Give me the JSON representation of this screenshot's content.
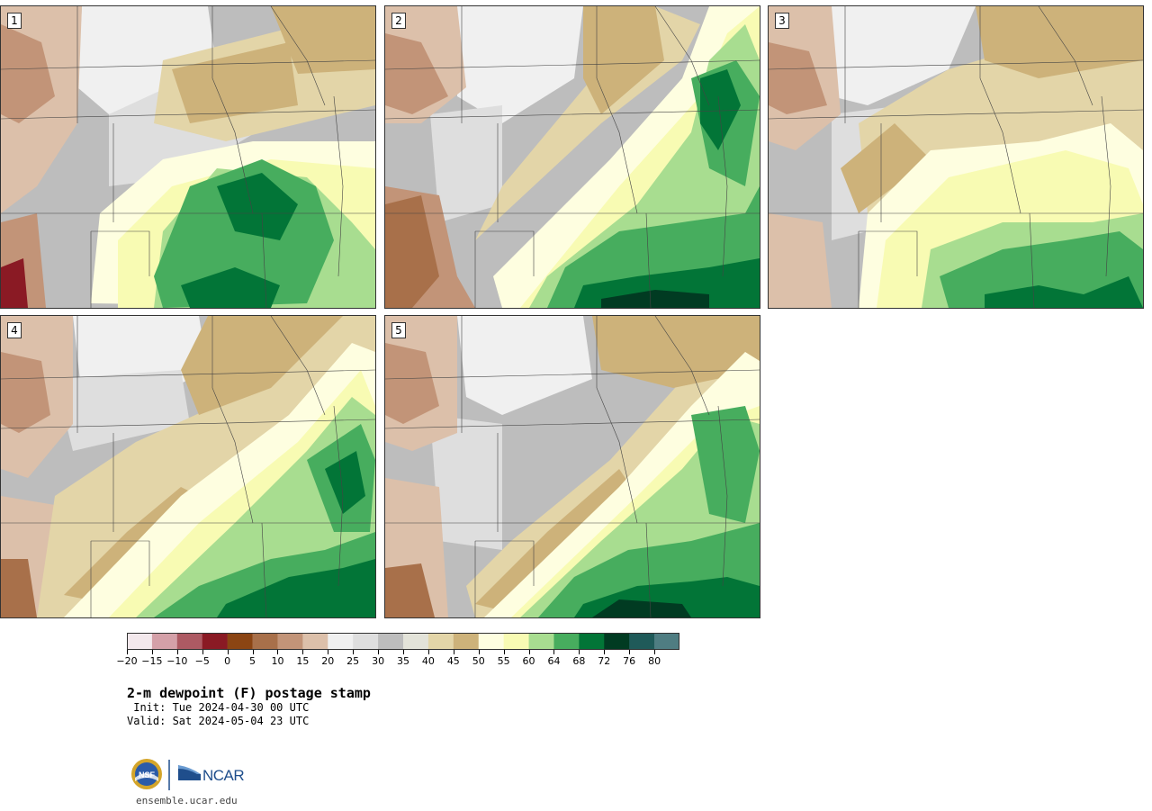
{
  "panels": [
    {
      "label": "1"
    },
    {
      "label": "2"
    },
    {
      "label": "3"
    },
    {
      "label": "4"
    },
    {
      "label": "5"
    }
  ],
  "colorbar": {
    "ticks": [
      "−20",
      "−15",
      "−10",
      "−5",
      "0",
      "5",
      "10",
      "15",
      "20",
      "25",
      "30",
      "35",
      "40",
      "45",
      "50",
      "55",
      "60",
      "64",
      "68",
      "72",
      "76",
      "80"
    ],
    "colors": [
      "#f3e8ec",
      "#d4a0a8",
      "#ad5a63",
      "#8a1a24",
      "#8b4513",
      "#a8704a",
      "#c29478",
      "#dcc0aa",
      "#f0f0f0",
      "#dedede",
      "#bdbdbd",
      "#e3e3d9",
      "#e3d5a8",
      "#cdb27a",
      "#fefee0",
      "#f8fbb3",
      "#a8dd90",
      "#47ad5e",
      "#027537",
      "#013b22",
      "#1f5a59",
      "#4f7d82"
    ]
  },
  "title": "2-m dewpoint (F) postage stamp",
  "init_line": " Init: Tue 2024-04-30 00 UTC",
  "valid_line": "Valid: Sat 2024-05-04 23 UTC",
  "logo": {
    "nsf_text": "NSF",
    "ncar_text": "NCAR"
  },
  "site": "ensemble.ucar.edu"
}
